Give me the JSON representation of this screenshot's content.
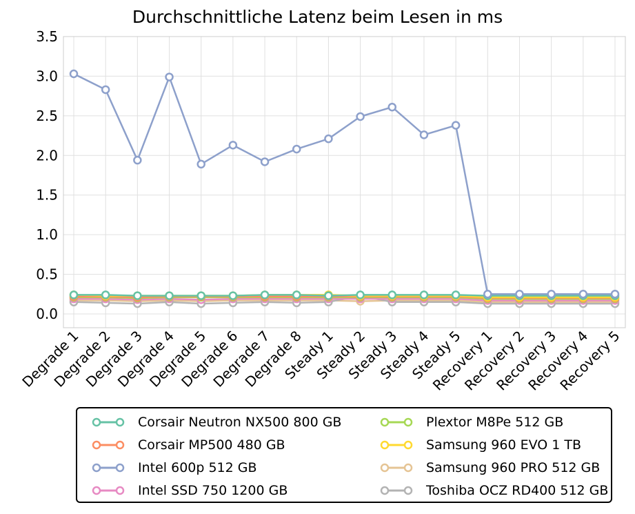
{
  "chart_data": {
    "type": "line",
    "title": "Durchschnittliche Latenz beim Lesen in ms",
    "xlabel": "",
    "ylabel": "",
    "categories": [
      "Degrade 1",
      "Degrade 2",
      "Degrade 3",
      "Degrade 4",
      "Degrade 5",
      "Degrade 6",
      "Degrade 7",
      "Degrade 8",
      "Steady 1",
      "Steady 2",
      "Steady 3",
      "Steady 4",
      "Steady 5",
      "Recovery 1",
      "Recovery 2",
      "Recovery 3",
      "Recovery 4",
      "Recovery 5"
    ],
    "ylim": [
      0.0,
      3.5
    ],
    "yticks": [
      "0.0",
      "0.5",
      "1.0",
      "1.5",
      "2.0",
      "2.5",
      "3.0",
      "3.5"
    ],
    "grid": true,
    "legend_position": "bottom",
    "series": [
      {
        "name": "Corsair Neutron NX500 800 GB",
        "color": "#66c2a5",
        "values": [
          0.24,
          0.24,
          0.23,
          0.23,
          0.23,
          0.23,
          0.24,
          0.24,
          0.23,
          0.24,
          0.24,
          0.24,
          0.24,
          0.23,
          0.23,
          0.23,
          0.23,
          0.23
        ]
      },
      {
        "name": "Corsair MP500 480 GB",
        "color": "#fc8d62",
        "values": [
          0.22,
          0.22,
          0.21,
          0.22,
          0.22,
          0.22,
          0.22,
          0.22,
          0.22,
          0.22,
          0.22,
          0.22,
          0.22,
          0.2,
          0.2,
          0.2,
          0.2,
          0.2
        ]
      },
      {
        "name": "Intel 600p 512 GB",
        "color": "#8da0cb",
        "values": [
          3.03,
          2.83,
          1.94,
          2.99,
          1.89,
          2.13,
          1.92,
          2.08,
          2.21,
          2.49,
          2.61,
          2.26,
          2.38,
          0.25,
          0.25,
          0.25,
          0.25,
          0.25
        ]
      },
      {
        "name": "Intel SSD 750 1200 GB",
        "color": "#e78ac3",
        "values": [
          0.19,
          0.19,
          0.18,
          0.19,
          0.18,
          0.19,
          0.19,
          0.19,
          0.19,
          0.19,
          0.19,
          0.19,
          0.19,
          0.17,
          0.17,
          0.17,
          0.17,
          0.17
        ]
      },
      {
        "name": "Plextor M8Pe 512 GB",
        "color": "#a6d854",
        "values": [
          0.21,
          0.21,
          0.2,
          0.21,
          0.21,
          0.21,
          0.21,
          0.21,
          0.21,
          0.21,
          0.21,
          0.21,
          0.21,
          0.19,
          0.19,
          0.19,
          0.19,
          0.19
        ]
      },
      {
        "name": "Samsung 960 EVO 1 TB",
        "color": "#ffd92f",
        "values": [
          0.24,
          0.23,
          0.23,
          0.23,
          0.23,
          0.23,
          0.24,
          0.24,
          0.24,
          0.23,
          0.23,
          0.23,
          0.23,
          0.21,
          0.21,
          0.21,
          0.21,
          0.21
        ]
      },
      {
        "name": "Samsung 960 PRO 512 GB",
        "color": "#e5c494",
        "values": [
          0.17,
          0.17,
          0.16,
          0.17,
          0.16,
          0.17,
          0.17,
          0.17,
          0.17,
          0.16,
          0.17,
          0.17,
          0.17,
          0.15,
          0.15,
          0.15,
          0.15,
          0.15
        ]
      },
      {
        "name": "Toshiba OCZ RD400 512 GB",
        "color": "#b3b3b3",
        "values": [
          0.15,
          0.14,
          0.13,
          0.15,
          0.13,
          0.14,
          0.15,
          0.14,
          0.15,
          0.23,
          0.15,
          0.15,
          0.15,
          0.13,
          0.13,
          0.13,
          0.13,
          0.13
        ]
      }
    ]
  }
}
